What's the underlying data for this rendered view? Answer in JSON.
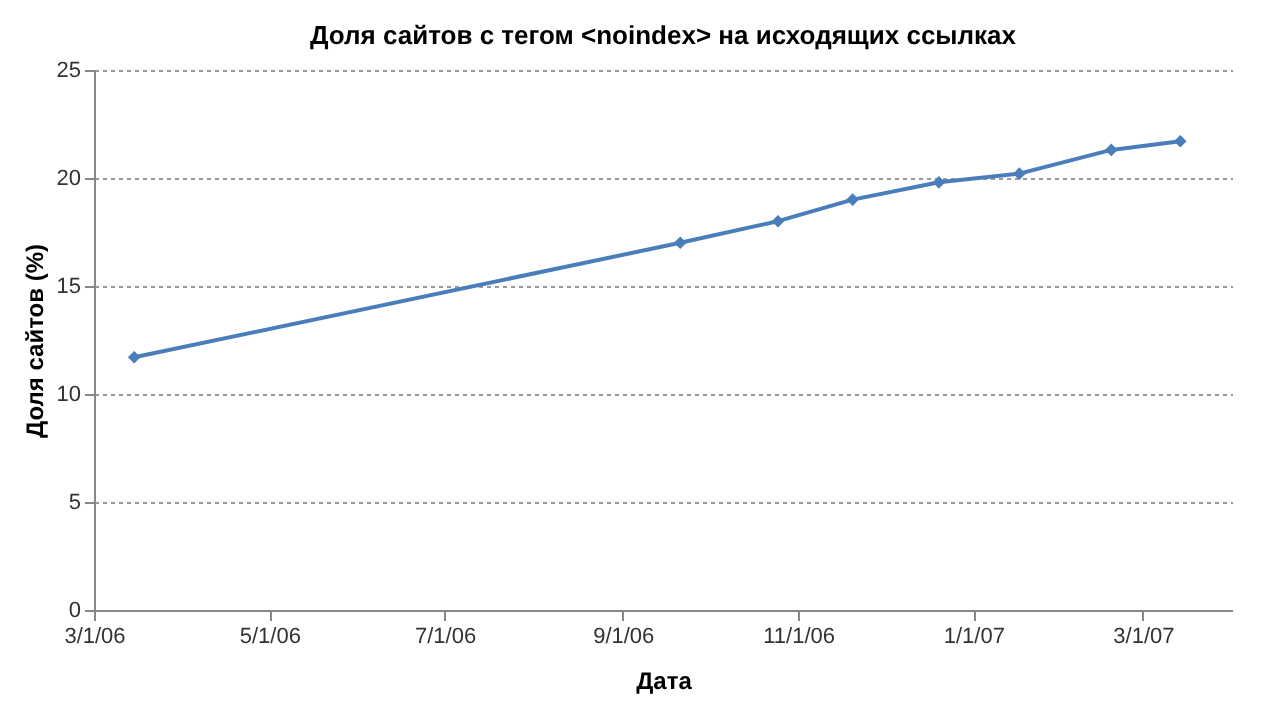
{
  "chart_data": {
    "type": "line",
    "title": "Доля сайтов с тегом <noindex> на исходящих ссылках",
    "xlabel": "Дата",
    "ylabel": "Доля сайтов (%)",
    "x": [
      "2006-03-15",
      "2006-09-21",
      "2006-10-25",
      "2006-11-20",
      "2006-12-20",
      "2007-01-17",
      "2007-02-18",
      "2007-03-14"
    ],
    "series": [
      {
        "color": "#4a7ebb",
        "values": [
          11.7,
          17.0,
          18.0,
          19.0,
          19.8,
          20.2,
          21.3,
          21.7
        ]
      }
    ],
    "xlim": [
      "2006-03-01",
      "2007-04-01"
    ],
    "xticks": [
      {
        "value": "2006-03-01",
        "label": "3/1/06"
      },
      {
        "value": "2006-05-01",
        "label": "5/1/06"
      },
      {
        "value": "2006-07-01",
        "label": "7/1/06"
      },
      {
        "value": "2006-09-01",
        "label": "9/1/06"
      },
      {
        "value": "2006-11-01",
        "label": "11/1/06"
      },
      {
        "value": "2007-01-01",
        "label": "1/1/07"
      },
      {
        "value": "2007-03-01",
        "label": "3/1/07"
      }
    ],
    "ylim": [
      0,
      25
    ],
    "yticks": [
      0,
      5,
      10,
      15,
      20,
      25
    ],
    "grid": "y",
    "legend": false,
    "marker": "diamond",
    "line_style": "solid"
  }
}
